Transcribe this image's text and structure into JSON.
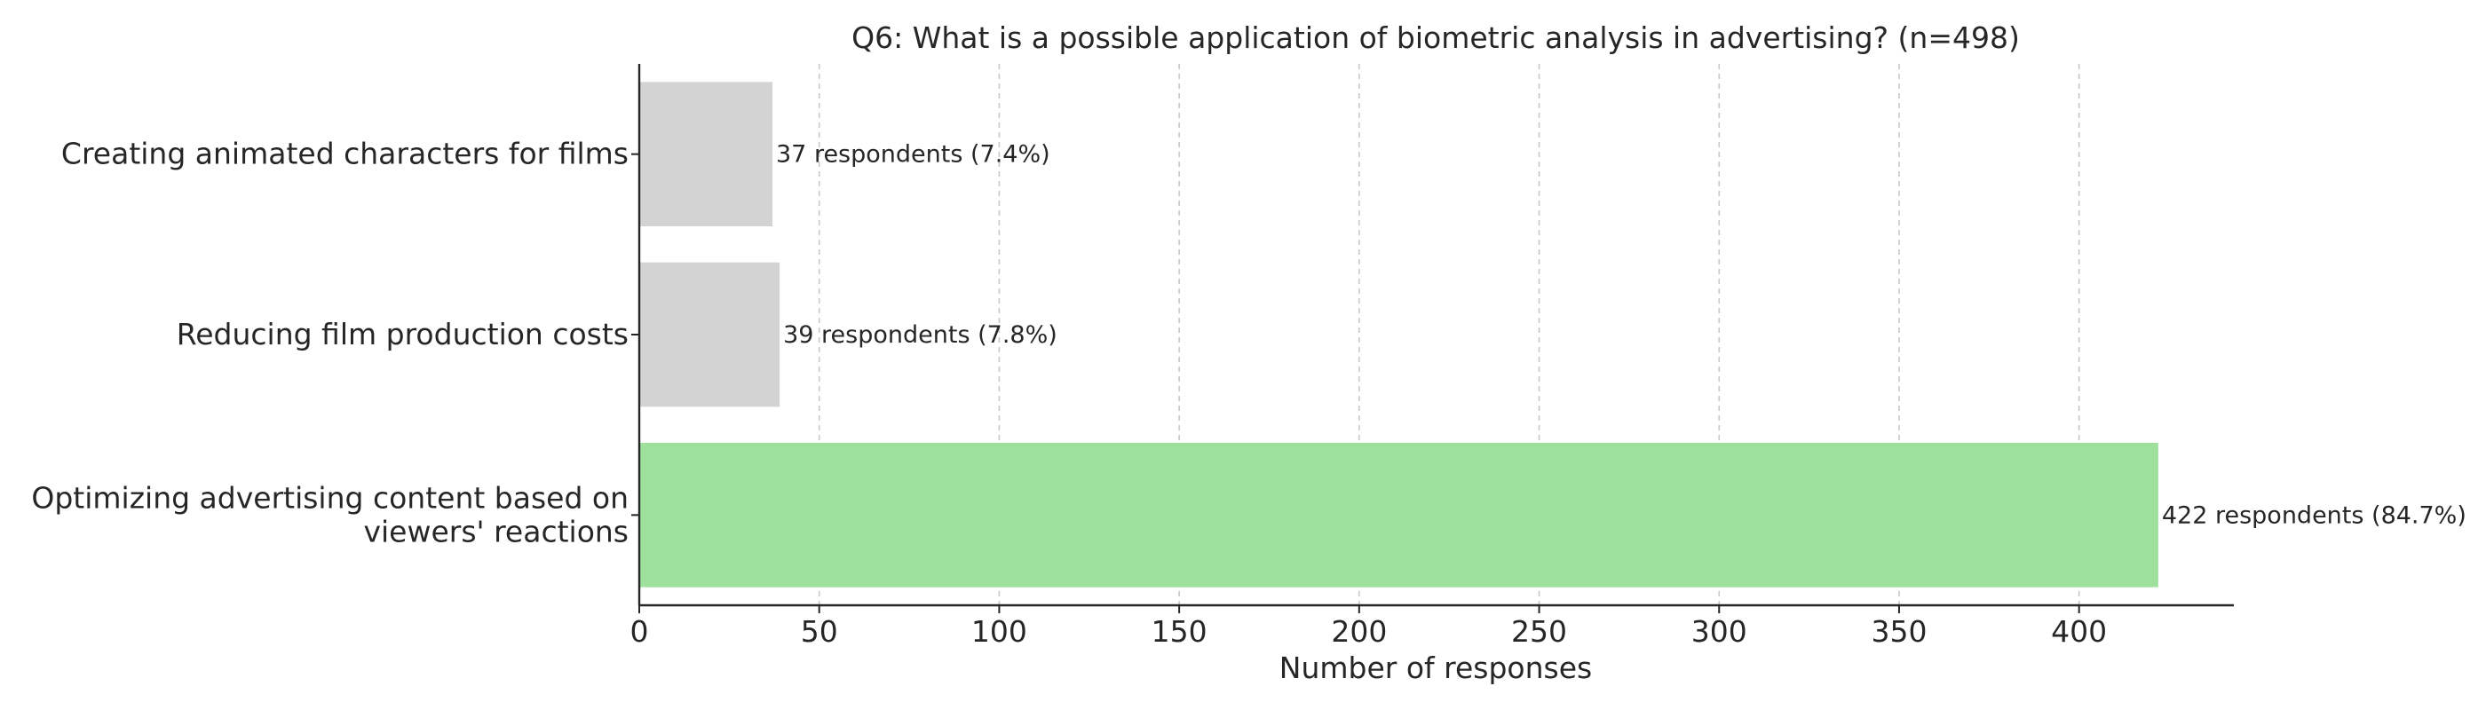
{
  "chart_data": {
    "type": "bar",
    "orientation": "horizontal",
    "title": "Q6: What is a possible application of biometric analysis in advertising? (n=498)",
    "xlabel": "Number of responses",
    "ylabel": "",
    "xlim": [
      0,
      443
    ],
    "xticks": [
      "0",
      "50",
      "100",
      "150",
      "200",
      "250",
      "300",
      "350",
      "400"
    ],
    "grid": "x, dashed",
    "categories": [
      [
        "Creating animated characters for films"
      ],
      [
        "Reducing film production costs"
      ],
      [
        "Optimizing advertising content based on",
        "viewers' reactions"
      ]
    ],
    "values": [
      37,
      39,
      422
    ],
    "data_labels": [
      "37 respondents (7.4%)",
      "39 respondents (7.8%)",
      "422 respondents (84.7%)"
    ],
    "colors": [
      "#d3d3d3",
      "#d3d3d3",
      "#9de19d"
    ],
    "highlight_index": 2
  }
}
